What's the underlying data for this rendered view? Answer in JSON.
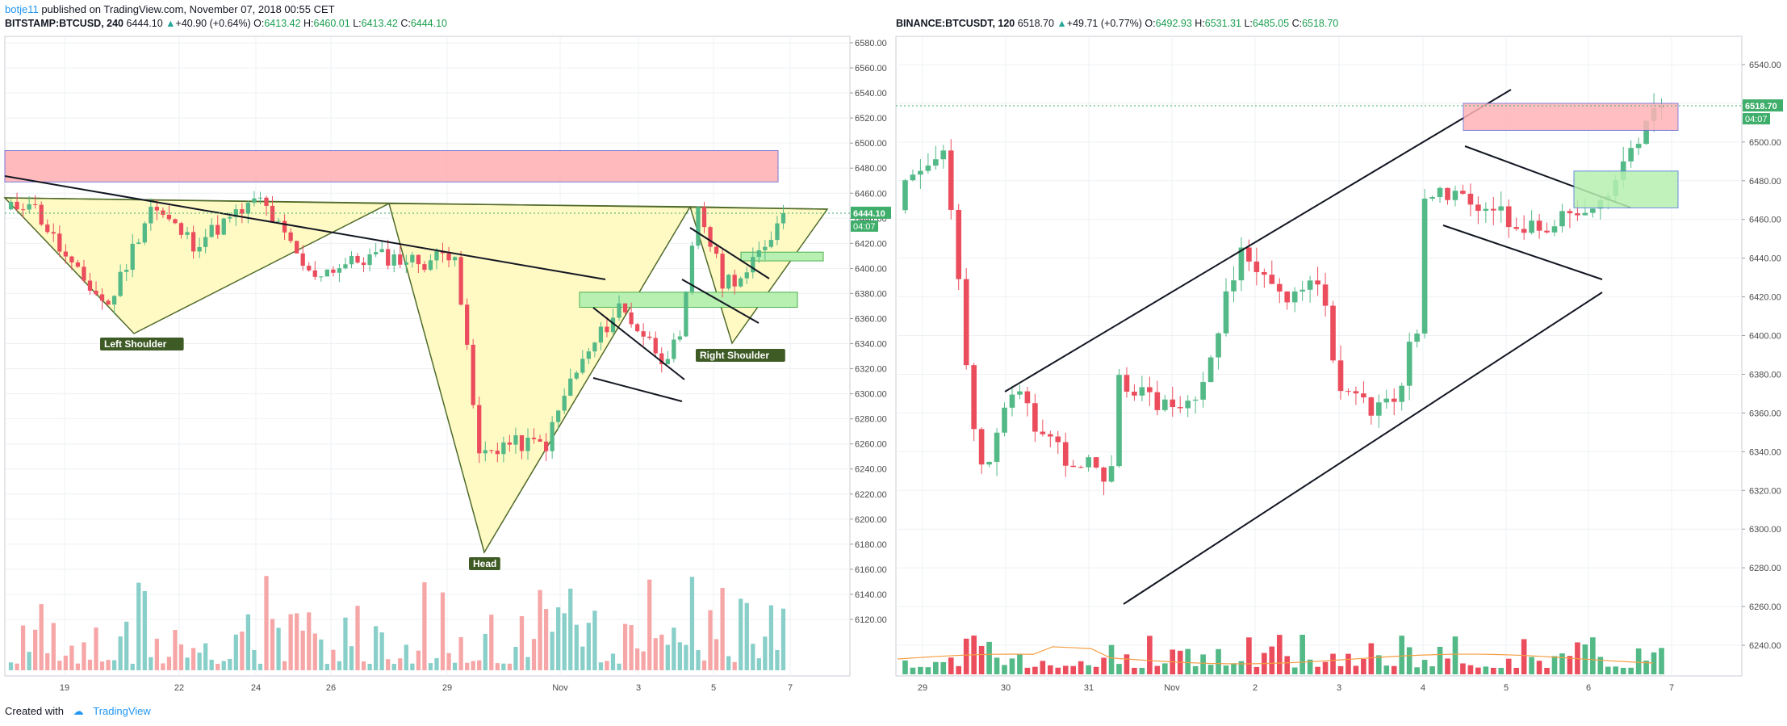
{
  "header": {
    "author": "botje11",
    "published_text": "published on TradingView.com, November 07, 2018 00:55 CET"
  },
  "footer": {
    "created_with": "Created with",
    "brand": "TradingView"
  },
  "colors": {
    "up": "#26a69a",
    "down": "#ef5350",
    "up_body": "#53b987",
    "down_body": "#eb4d5c",
    "vol_up_left": "#89cfc9",
    "vol_down_left": "#f6a6a6",
    "resistance_zone": "#ffb3b8",
    "support_zone": "#b7f0b1",
    "pattern_fill": "#fff9c4",
    "pattern_line": "#4f6b2a",
    "price_label_bg": "#3fae6b",
    "ma_line": "#f59d42"
  },
  "chart_data": [
    {
      "type": "candlestick",
      "symbol": "BITSTAMP:BTCUSD",
      "interval": "240",
      "last": "6444.10",
      "change": "+40.90 (+0.64%)",
      "ohlc": {
        "O": "6413.42",
        "H": "6460.01",
        "L": "6413.42",
        "C": "6444.10"
      },
      "price_label": "6444.10",
      "countdown": "04:07",
      "y_ticks": [
        "6580.00",
        "6560.00",
        "6540.00",
        "6520.00",
        "6500.00",
        "6480.00",
        "6460.00",
        "6440.00",
        "6420.00",
        "6400.00",
        "6380.00",
        "6360.00",
        "6340.00",
        "6320.00",
        "6300.00",
        "6280.00",
        "6260.00",
        "6240.00",
        "6220.00",
        "6200.00",
        "6180.00",
        "6160.00",
        "6140.00",
        "6120.00"
      ],
      "ylim": [
        6110,
        6585
      ],
      "x_ticks": [
        "19",
        "22",
        "24",
        "26",
        "29",
        "Nov",
        "3",
        "5",
        "7"
      ],
      "annotations": {
        "left_shoulder": "Left Shoulder",
        "head": "Head",
        "right_shoulder": "Right Shoulder"
      },
      "zones": [
        {
          "kind": "resistance",
          "price_low": 6469,
          "price_high": 6494
        },
        {
          "kind": "support",
          "price_low": 6406,
          "price_high": 6413
        },
        {
          "kind": "support",
          "price_low": 6369,
          "price_high": 6381
        }
      ]
    },
    {
      "type": "candlestick",
      "symbol": "BINANCE:BTCUSDT",
      "interval": "120",
      "last": "6518.70",
      "change": "+49.71 (+0.77%)",
      "ohlc": {
        "O": "6492.93",
        "H": "6531.31",
        "L": "6485.05",
        "C": "6518.70"
      },
      "price_label": "6518.70",
      "countdown": "04:07",
      "y_ticks": [
        "6540.00",
        "6520.00",
        "6500.00",
        "6480.00",
        "6460.00",
        "6440.00",
        "6420.00",
        "6400.00",
        "6380.00",
        "6360.00",
        "6340.00",
        "6320.00",
        "6300.00",
        "6280.00",
        "6260.00",
        "6240.00"
      ],
      "ylim": [
        6228,
        6552
      ],
      "x_ticks": [
        "29",
        "30",
        "31",
        "Nov",
        "2",
        "3",
        "4",
        "5",
        "6",
        "7"
      ],
      "zones": [
        {
          "kind": "resistance",
          "price_low": 6506,
          "price_high": 6520
        },
        {
          "kind": "support",
          "price_low": 6466,
          "price_high": 6485
        }
      ]
    }
  ]
}
